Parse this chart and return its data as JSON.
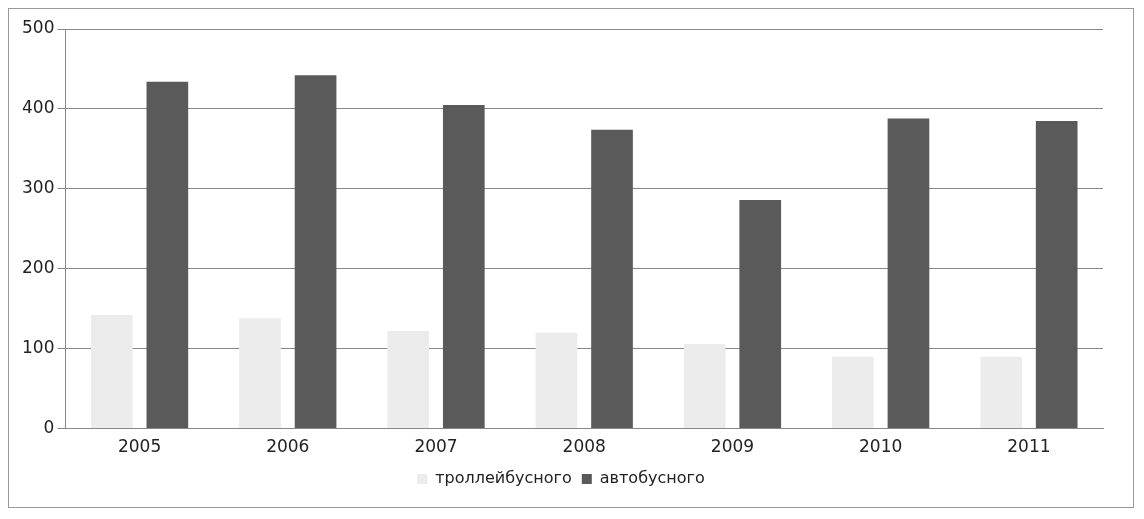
{
  "chart_data": {
    "type": "bar",
    "categories": [
      "2005",
      "2006",
      "2007",
      "2008",
      "2009",
      "2010",
      "2011"
    ],
    "series": [
      {
        "name": "троллейбусного",
        "color": "#ececec",
        "values": [
          142,
          138,
          122,
          120,
          106,
          90,
          90
        ]
      },
      {
        "name": "автобусного",
        "color": "#5a5a5a",
        "values": [
          434,
          442,
          405,
          374,
          286,
          388,
          385
        ]
      }
    ],
    "ylim": [
      0,
      500
    ],
    "yticks": [
      0,
      100,
      200,
      300,
      400,
      500
    ],
    "grid": "y",
    "legend": "bottom"
  }
}
